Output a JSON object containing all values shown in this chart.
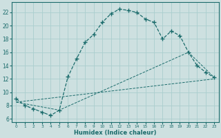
{
  "xlabel": "Humidex (Indice chaleur)",
  "bg_color": "#cde0e0",
  "grid_color": "#aacece",
  "line_color": "#1a6b6b",
  "xlim": [
    -0.5,
    23.5
  ],
  "ylim": [
    5.5,
    23.5
  ],
  "xticks": [
    0,
    1,
    2,
    3,
    4,
    5,
    6,
    7,
    8,
    9,
    10,
    11,
    12,
    13,
    14,
    15,
    16,
    17,
    18,
    19,
    20,
    21,
    22,
    23
  ],
  "yticks": [
    6,
    8,
    10,
    12,
    14,
    16,
    18,
    20,
    22
  ],
  "curve1_x": [
    0,
    1,
    2,
    3,
    4,
    5,
    6,
    7,
    8,
    9,
    10,
    11,
    12,
    13,
    14,
    15,
    16,
    17,
    18,
    19,
    20,
    21,
    22,
    23
  ],
  "curve1_y": [
    9.0,
    8.0,
    7.5,
    7.0,
    6.5,
    7.3,
    12.3,
    15.0,
    17.5,
    18.7,
    20.5,
    21.8,
    22.5,
    22.3,
    22.0,
    21.0,
    20.5,
    18.0,
    19.2,
    18.5,
    16.0,
    14.0,
    13.0,
    12.2
  ],
  "line1_x": [
    0,
    23
  ],
  "line1_y": [
    8.5,
    12.0
  ],
  "line2_x": [
    0,
    5,
    20,
    23
  ],
  "line2_y": [
    8.5,
    7.3,
    16.0,
    12.2
  ]
}
